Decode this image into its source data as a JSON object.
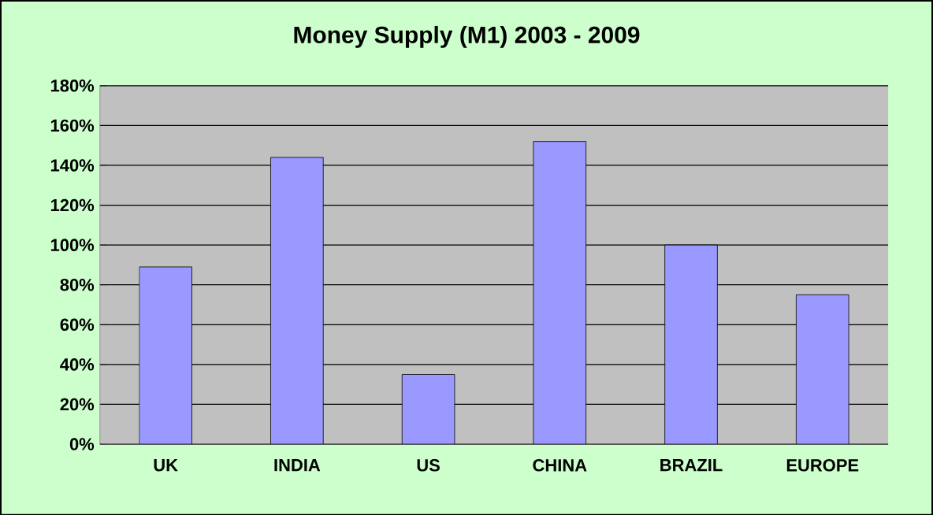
{
  "chart_data": {
    "type": "bar",
    "title": "Money Supply (M1) 2003 - 2009",
    "categories": [
      "UK",
      "INDIA",
      "US",
      "CHINA",
      "BRAZIL",
      "EUROPE"
    ],
    "values": [
      89,
      144,
      35,
      152,
      100,
      75
    ],
    "color": "#9999ff",
    "ylim": [
      0,
      180
    ],
    "yticks": [
      {
        "value": 0,
        "label": "0%"
      },
      {
        "value": 20,
        "label": "20%"
      },
      {
        "value": 40,
        "label": "40%"
      },
      {
        "value": 60,
        "label": "60%"
      },
      {
        "value": 80,
        "label": "80%"
      },
      {
        "value": 100,
        "label": "100%"
      },
      {
        "value": 120,
        "label": "120%"
      },
      {
        "value": 140,
        "label": "140%"
      },
      {
        "value": 160,
        "label": "160%"
      },
      {
        "value": 180,
        "label": "180%"
      }
    ],
    "grid": "y"
  }
}
